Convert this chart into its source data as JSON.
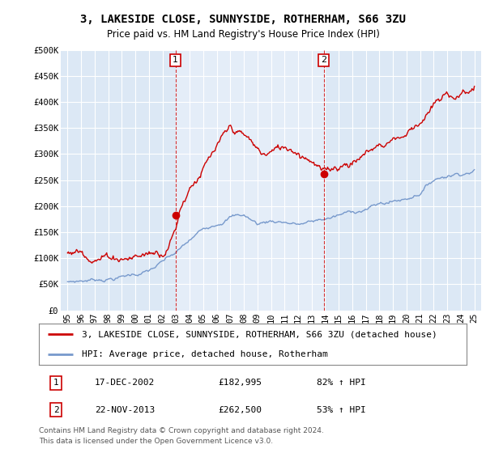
{
  "title": "3, LAKESIDE CLOSE, SUNNYSIDE, ROTHERHAM, S66 3ZU",
  "subtitle": "Price paid vs. HM Land Registry's House Price Index (HPI)",
  "ylim": [
    0,
    500000
  ],
  "yticks": [
    0,
    50000,
    100000,
    150000,
    200000,
    250000,
    300000,
    350000,
    400000,
    450000,
    500000
  ],
  "ytick_labels": [
    "£0",
    "£50K",
    "£100K",
    "£150K",
    "£200K",
    "£250K",
    "£300K",
    "£350K",
    "£400K",
    "£450K",
    "£500K"
  ],
  "xtick_years": [
    1995,
    1996,
    1997,
    1998,
    1999,
    2000,
    2001,
    2002,
    2003,
    2004,
    2005,
    2006,
    2007,
    2008,
    2009,
    2010,
    2011,
    2012,
    2013,
    2014,
    2015,
    2016,
    2017,
    2018,
    2019,
    2020,
    2021,
    2022,
    2023,
    2024,
    2025
  ],
  "property_color": "#cc0000",
  "hpi_color": "#7799cc",
  "sale1_x": 2002.96,
  "sale1_y": 182995,
  "sale2_x": 2013.9,
  "sale2_y": 262500,
  "sale1_date": "17-DEC-2002",
  "sale1_price": "£182,995",
  "sale1_hpi": "82% ↑ HPI",
  "sale2_date": "22-NOV-2013",
  "sale2_price": "£262,500",
  "sale2_hpi": "53% ↑ HPI",
  "legend_property": "3, LAKESIDE CLOSE, SUNNYSIDE, ROTHERHAM, S66 3ZU (detached house)",
  "legend_hpi": "HPI: Average price, detached house, Rotherham",
  "footer1": "Contains HM Land Registry data © Crown copyright and database right 2024.",
  "footer2": "This data is licensed under the Open Government Licence v3.0.",
  "background_color": "#ffffff",
  "plot_bg_color": "#dce8f5",
  "highlight_bg_color": "#e8f0fa",
  "grid_color": "#ffffff",
  "vline_color": "#cc0000",
  "title_fontsize": 10,
  "subtitle_fontsize": 8.5,
  "tick_fontsize": 7.5,
  "legend_fontsize": 8,
  "footer_fontsize": 6.5
}
